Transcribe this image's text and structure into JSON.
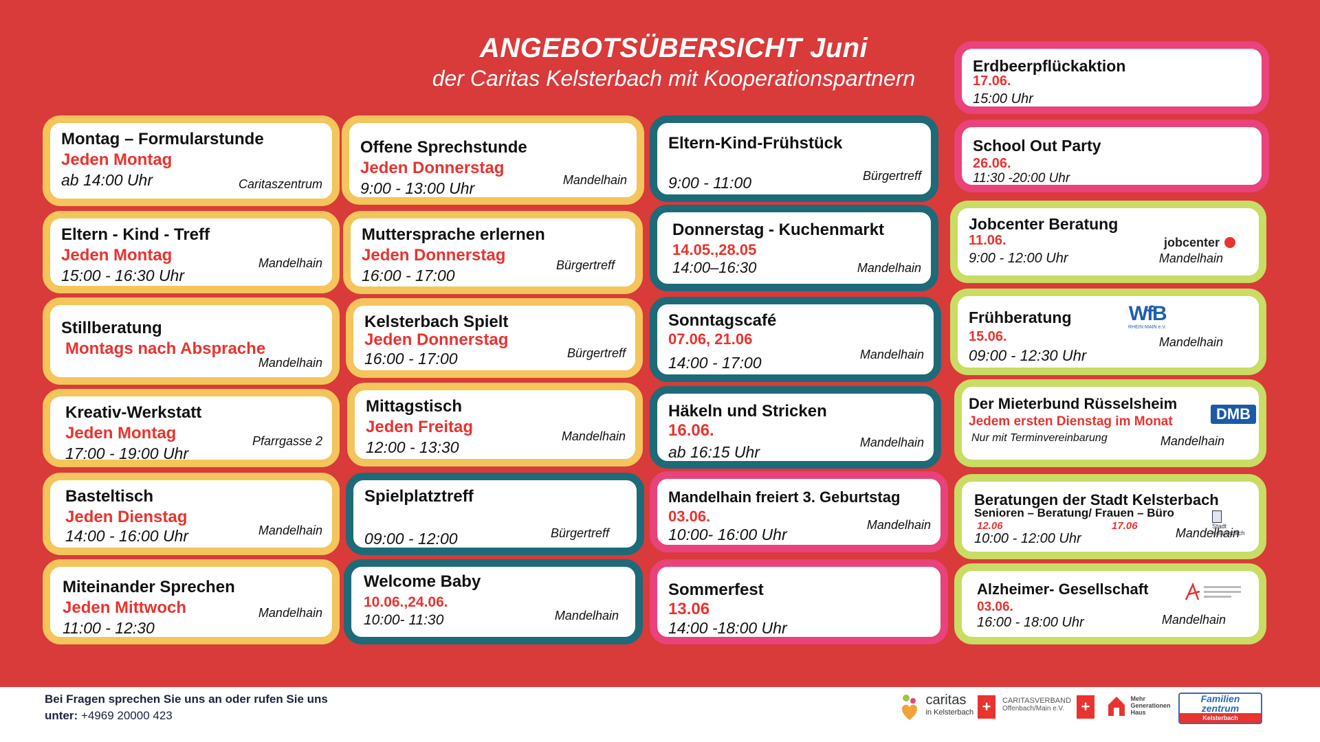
{
  "header": {
    "title": "ANGEBOTSÜBERSICHT  Juni",
    "subtitle": "der Caritas Kelsterbach mit Kooperationspartnern"
  },
  "col1": [
    {
      "title": "Montag – Formularstunde",
      "day": "Jeden Montag",
      "time": "ab 14:00 Uhr",
      "place": "Caritaszentrum"
    },
    {
      "title": "Eltern - Kind - Treff",
      "day": "Jeden Montag",
      "time": "15:00 - 16:30 Uhr",
      "place": "Mandelhain"
    },
    {
      "title": "Stillberatung",
      "day": "Montags nach Absprache",
      "time": "",
      "place": "Mandelhain"
    },
    {
      "title": "Kreativ-Werkstatt",
      "day": "Jeden Montag",
      "time": "17:00 - 19:00 Uhr",
      "place": "Pfarrgasse 2"
    },
    {
      "title": "Basteltisch",
      "day": "Jeden Dienstag",
      "time": "14:00 - 16:00 Uhr",
      "place": "Mandelhain"
    },
    {
      "title": "Miteinander Sprechen",
      "day": "Jeden Mittwoch",
      "time": "11:00 - 12:30",
      "place": "Mandelhain"
    }
  ],
  "col2": [
    {
      "title": "Offene Sprechstunde",
      "day": "Jeden Donnerstag",
      "time": "9:00 - 13:00 Uhr",
      "place": "Mandelhain"
    },
    {
      "title": "Muttersprache erlernen",
      "day": "Jeden Donnerstag",
      "time": "16:00 - 17:00",
      "place": "Bürgertreff"
    },
    {
      "title": "Kelsterbach Spielt",
      "day": "Jeden Donnerstag",
      "time": "16:00 - 17:00",
      "place": "Bürgertreff"
    },
    {
      "title": "Mittagstisch",
      "day": "Jeden Freitag",
      "time": "12:00 - 13:30",
      "place": "Mandelhain"
    },
    {
      "title": "Spielplatztreff",
      "day": "",
      "time": "09:00 - 12:00",
      "place": "Bürgertreff"
    },
    {
      "title": "Welcome Baby",
      "day": "10.06.,24.06.",
      "time": "10:00- 11:30",
      "place": "Mandelhain"
    }
  ],
  "col3": [
    {
      "title": "Eltern-Kind-Frühstück",
      "day": "",
      "time": "9:00 - 11:00",
      "place": "Bürgertreff"
    },
    {
      "title": "Donnerstag - Kuchenmarkt",
      "day": "14.05.,28.05",
      "time": "14:00–16:30",
      "place": "Mandelhain"
    },
    {
      "title": "Sonntagscafé",
      "day": "07.06, 21.06",
      "time": "14:00 - 17:00",
      "place": "Mandelhain"
    },
    {
      "title": "Häkeln und Stricken",
      "day": "16.06.",
      "time": "ab 16:15 Uhr",
      "place": "Mandelhain"
    },
    {
      "title": "Mandelhain freiert 3. Geburtstag",
      "day": "03.06.",
      "time": "10:00- 16:00 Uhr",
      "place": "Mandelhain"
    },
    {
      "title": "Sommerfest",
      "day": "13.06",
      "time": "14:00 -18:00 Uhr",
      "place": ""
    }
  ],
  "col4": {
    "erdbeer": {
      "title": "Erdbeerpflückaktion",
      "day": "17.06.",
      "time": "15:00 Uhr"
    },
    "school": {
      "title": "School Out Party",
      "day": "26.06.",
      "time": "11:30 -20:00 Uhr"
    },
    "jobcenter": {
      "title": "Jobcenter Beratung",
      "day": "11.06.",
      "time": "9:00 - 12:00 Uhr",
      "place": "Mandelhain",
      "logo": "jobcenter"
    },
    "frueh": {
      "title": "Frühberatung",
      "day": "15.06.",
      "time": "09:00 - 12:30 Uhr",
      "place": "Mandelhain",
      "logo": "WfB",
      "logo_sub": "RHEIN-MAIN e.V."
    },
    "mieter": {
      "title": "Der Mieterbund Rüsselsheim",
      "day": "Jedem ersten Dienstag im Monat",
      "note": "Nur mit Terminvereinbarung",
      "place": "Mandelhain",
      "logo": "DMB"
    },
    "stadt": {
      "title": "Beratungen der Stadt Kelsterbach",
      "sub": "Senioren – Beratung/ Frauen – Büro",
      "date1": "12.06",
      "date2": "17.06",
      "time": "10:00 - 12:00 Uhr",
      "place": "Mandelhain",
      "logo": "Stadt Kelsterbach"
    },
    "alz": {
      "title": "Alzheimer- Gesellschaft",
      "day": "03.06.",
      "time": "16:00 - 18:00 Uhr",
      "place": "Mandelhain"
    }
  },
  "footer": {
    "question": "Bei Fragen sprechen Sie uns an oder rufen Sie uns",
    "prefix": "unter:",
    "phone": "+4969 20000 423",
    "logos": {
      "caritas": "caritas",
      "caritas_sub": "in Kelsterbach",
      "verband1": "CARITASVERBAND",
      "verband2": "Offenbach/Main e.V.",
      "mgh1": "Mehr",
      "mgh2": "Generationen",
      "mgh3": "Haus",
      "fz1": "Familien",
      "fz2": "zentrum",
      "fz3": "Kelsterbach"
    }
  },
  "colors": {
    "background": "#d93a3a",
    "yellow": "#f3c55b",
    "teal": "#1d6a78",
    "pink": "#e8437a",
    "green": "#c9dc64",
    "date_red": "#e8332f"
  }
}
